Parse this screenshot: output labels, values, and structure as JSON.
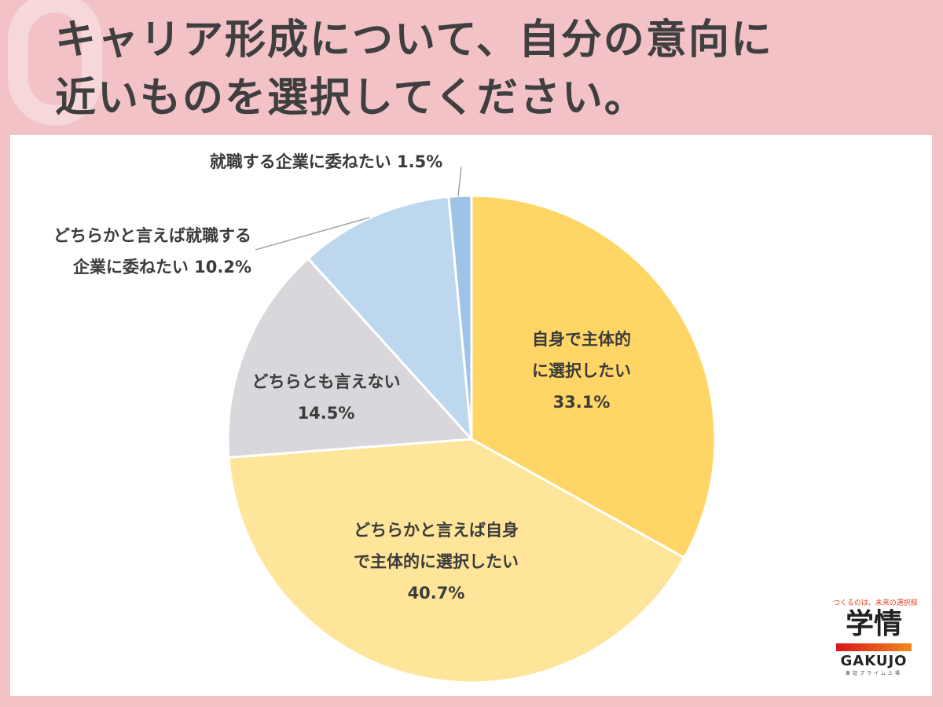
{
  "header": {
    "title_line1": "キャリア形成について、自分の意向に",
    "title_line2": "近いものを選択してください。"
  },
  "chart_data": {
    "type": "pie",
    "title": "キャリア形成について、自分の意向に近いものを選択してください。",
    "start_angle": "12 o'clock, clockwise",
    "slices": [
      {
        "label": "自身で主体的に選択したい",
        "value": 33.1,
        "color": "#FFD666"
      },
      {
        "label": "どちらかと言えば自身で主体的に選択したい",
        "value": 40.7,
        "color": "#FFE599"
      },
      {
        "label": "どちらとも言えない",
        "value": 14.5,
        "color": "#D9D7DB"
      },
      {
        "label": "どちらかと言えば就職する企業に委ねたい",
        "value": 10.2,
        "color": "#BDD7EE"
      },
      {
        "label": "就職する企業に委ねたい",
        "value": 1.5,
        "color": "#9DC3E6"
      }
    ]
  },
  "labels": {
    "s1": {
      "line1": "自身で主体的",
      "line2": "に選択したい",
      "pct": "33.1%"
    },
    "s2": {
      "line1": "どちらかと言えば自身",
      "line2": "で主体的に選択したい",
      "pct": "40.7%"
    },
    "s3": {
      "line1": "どちらとも言えない",
      "pct": "14.5%"
    },
    "s4": {
      "line1": "どちらかと言えば就職する",
      "line2": "企業に委ねたい 10.2%"
    },
    "s5": {
      "line1": "就職する企業に委ねたい 1.5%"
    }
  },
  "logo": {
    "tagline": "つくるのは、未来の選択肢",
    "kanji": "学情",
    "name": "GAKUJO",
    "sub": "東証プライム上場"
  }
}
